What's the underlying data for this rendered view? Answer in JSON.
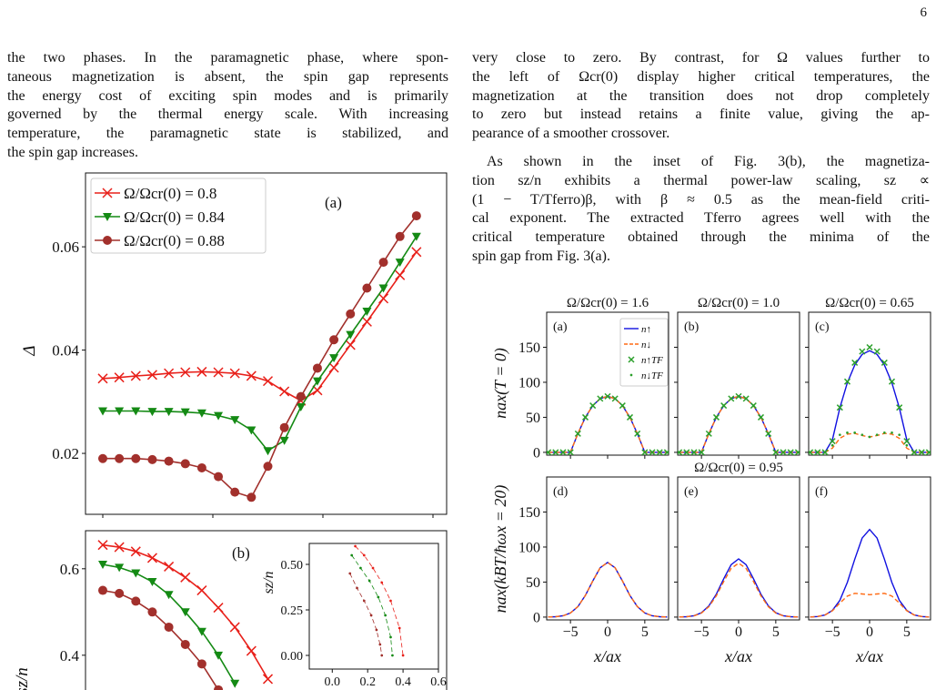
{
  "page_number": "6",
  "left_text": {
    "lines": [
      "the two phases. In the paramagnetic phase, where spon-",
      "taneous magnetization is absent, the spin gap represents",
      "the energy cost of exciting spin modes and is primarily",
      "governed by the thermal energy scale. With increasing",
      "temperature, the paramagnetic state is stabilized, and",
      "the spin gap increases."
    ]
  },
  "right_text": {
    "paragraphs": [
      [
        "very close to zero. By contrast, for Ω values further to",
        "the left of Ωcr(0) display higher critical temperatures, the",
        "magnetization at the transition does not drop completely",
        "to zero but instead retains a finite value, giving the ap-",
        "pearance of a smoother crossover."
      ],
      [
        "As shown in the inset of Fig. 3(b), the magnetiza-",
        "tion sz/n exhibits a thermal power-law scaling, sz ∝",
        "(1 − T/Tferro)β, with β ≈ 0.5 as the mean-field criti-",
        "cal exponent. The extracted Tferro agrees well with the",
        "critical temperature obtained through the minima of the",
        "spin gap from Fig. 3(a)."
      ]
    ]
  },
  "figure_left": {
    "panels": [
      {
        "type": "line",
        "label": "(a)",
        "ylabel": "Δ",
        "x": [
          0,
          0.15,
          0.3,
          0.45,
          0.6,
          0.75,
          0.9,
          1.05,
          1.2,
          1.35,
          1.5,
          1.65,
          1.8,
          1.95,
          2.1,
          2.25,
          2.4,
          2.55,
          2.7,
          2.85
        ],
        "xlim": [
          -0.157,
          3.124
        ],
        "xticks": [
          0,
          1,
          2,
          3
        ],
        "ylim": [
          0.0082,
          0.0743
        ],
        "yticks": [
          0.02,
          0.04,
          0.06
        ],
        "series": [
          {
            "name": "Ω/Ωcr(0) = 0.8",
            "color": "#e8201a",
            "marker": "x",
            "values": [
              0.0345,
              0.0347,
              0.035,
              0.0352,
              0.0355,
              0.0357,
              0.0358,
              0.0357,
              0.0355,
              0.035,
              0.034,
              0.032,
              0.0302,
              0.0322,
              0.0366,
              0.041,
              0.0455,
              0.05,
              0.0545,
              0.059
            ]
          },
          {
            "name": "Ω/Ωcr(0) = 0.84",
            "color": "#148a14",
            "marker": "v",
            "values": [
              0.0282,
              0.0282,
              0.0282,
              0.0281,
              0.0281,
              0.028,
              0.0278,
              0.0273,
              0.0265,
              0.0245,
              0.0205,
              0.0225,
              0.029,
              0.034,
              0.0385,
              0.043,
              0.0475,
              0.052,
              0.057,
              0.062
            ]
          },
          {
            "name": "Ω/Ωcr(0) = 0.88",
            "color": "#a2302c",
            "marker": "o",
            "values": [
              0.019,
              0.019,
              0.019,
              0.0188,
              0.0185,
              0.018,
              0.0172,
              0.0155,
              0.0125,
              0.0115,
              0.0175,
              0.025,
              0.031,
              0.0365,
              0.042,
              0.047,
              0.052,
              0.057,
              0.062,
              0.066
            ]
          }
        ]
      },
      {
        "type": "line",
        "label": "(b)",
        "ylabel": "sz/n",
        "x": [
          0,
          0.15,
          0.3,
          0.45,
          0.6,
          0.75,
          0.9,
          1.05,
          1.2,
          1.35,
          1.5
        ],
        "xlim": [
          -0.157,
          3.124
        ],
        "xticks": [
          0,
          1,
          2,
          3
        ],
        "ylim": [
          0.267,
          0.688
        ],
        "yticks": [
          0.4,
          0.6
        ],
        "series": [
          {
            "color": "#e8201a",
            "marker": "x",
            "values": [
              0.655,
              0.65,
              0.64,
              0.625,
              0.605,
              0.58,
              0.55,
              0.51,
              0.465,
              0.41,
              0.345
            ]
          },
          {
            "color": "#148a14",
            "marker": "v",
            "values": [
              0.61,
              0.603,
              0.59,
              0.57,
              0.54,
              0.5,
              0.455,
              0.4,
              0.335,
              null,
              null
            ]
          },
          {
            "color": "#a2302c",
            "marker": "o",
            "values": [
              0.55,
              0.543,
              0.525,
              0.5,
              0.465,
              0.425,
              0.38,
              0.32,
              null,
              null,
              null
            ]
          }
        ],
        "inset": {
          "ylabel": "sz/n",
          "xlim": [
            -0.13,
            0.6
          ],
          "ylim": [
            -0.075,
            0.615
          ],
          "xticks": [
            {
              "value": 0,
              "label": "0.0"
            },
            0.2,
            0.4,
            0.6
          ],
          "yticks": [
            {
              "value": 0,
              "label": "0.00"
            },
            0.25,
            {
              "value": 0.5,
              "label": "0.50"
            }
          ],
          "series": [
            {
              "color": "#e8201a",
              "x": [
                0.13,
                0.18,
                0.23,
                0.28,
                0.33,
                0.38,
                0.4
              ],
              "values": [
                0.6,
                0.55,
                0.48,
                0.4,
                0.3,
                0.15,
                0
              ]
            },
            {
              "color": "#148a14",
              "x": [
                0.11,
                0.16,
                0.21,
                0.26,
                0.3,
                0.33,
                0.34
              ],
              "values": [
                0.55,
                0.48,
                0.41,
                0.32,
                0.22,
                0.1,
                0
              ]
            },
            {
              "color": "#a2302c",
              "x": [
                0.1,
                0.14,
                0.18,
                0.22,
                0.25,
                0.27,
                0.28
              ],
              "values": [
                0.45,
                0.37,
                0.3,
                0.22,
                0.14,
                0.06,
                0
              ]
            }
          ]
        }
      }
    ]
  },
  "figure_right": {
    "type": "line",
    "x": [
      -8,
      -7,
      -6,
      -5,
      -4,
      -3,
      -2,
      -1,
      0,
      1,
      2,
      3,
      4,
      5,
      6,
      7,
      8
    ],
    "xlim": [
      -8.2,
      8.2
    ],
    "xticks": [
      {
        "value": -5,
        "label": "−5"
      },
      0,
      5
    ],
    "ylim": [
      -4,
      200
    ],
    "yticks": [
      0,
      50,
      100,
      150
    ],
    "xlabel": "x/ax",
    "ylabels": [
      "nax(T = 0)",
      "nax(kBT/ħωx = 20)"
    ],
    "legend": [
      {
        "name": "n↑",
        "color": "#1010e0",
        "style": "solid"
      },
      {
        "name": "n↓",
        "color": "#ff6a13",
        "style": "dashed"
      },
      {
        "name": "n↑TF",
        "color": "#2ca02c",
        "style": "x"
      },
      {
        "name": "n↓TF",
        "color": "#2ca02c",
        "style": "dot"
      }
    ],
    "panels": [
      {
        "label": "(a)",
        "title": "Ω/Ωcr(0) = 1.6",
        "series": [
          [
            0,
            0,
            0,
            0,
            26.7,
            50,
            66.7,
            76.7,
            80,
            76.7,
            66.7,
            50,
            26.7,
            0,
            0,
            0,
            0
          ],
          [
            0,
            0,
            0,
            0,
            26.7,
            50,
            66.7,
            76.7,
            80,
            76.7,
            66.7,
            50,
            26.7,
            0,
            0,
            0,
            0
          ],
          [
            0,
            0,
            0,
            0,
            26.7,
            50,
            66.7,
            76.7,
            80,
            76.7,
            66.7,
            50,
            26.7,
            0,
            0,
            0,
            0
          ],
          [
            0,
            0,
            0,
            0,
            26.7,
            50,
            66.7,
            76.7,
            80,
            76.7,
            66.7,
            50,
            26.7,
            0,
            0,
            0,
            0
          ]
        ]
      },
      {
        "label": "(b)",
        "title": "Ω/Ωcr(0) = 1.0",
        "series": [
          [
            0,
            0,
            0,
            0,
            26.7,
            50,
            66.7,
            76.7,
            80,
            76.7,
            66.7,
            50,
            26.7,
            0,
            0,
            0,
            0
          ],
          [
            0,
            0,
            0,
            0,
            26.7,
            50,
            66.7,
            76.7,
            80,
            76.7,
            66.7,
            50,
            26.7,
            0,
            0,
            0,
            0
          ],
          [
            0,
            0,
            0,
            0,
            26.7,
            50,
            66.7,
            76.7,
            80,
            76.7,
            66.7,
            50,
            26.7,
            0,
            0,
            0,
            0
          ],
          [
            0,
            0,
            0,
            0,
            26.7,
            50,
            66.7,
            76.7,
            80,
            76.7,
            66.7,
            50,
            26.7,
            0,
            0,
            0,
            0
          ]
        ]
      },
      {
        "label": "(c)",
        "title": "Ω/Ωcr(0) = 0.65",
        "series": [
          [
            0,
            0,
            0,
            17.8,
            63.5,
            99.2,
            124.6,
            139.9,
            145,
            139.9,
            124.6,
            99.2,
            63.5,
            17.8,
            0,
            0,
            0
          ],
          [
            0,
            0,
            0,
            6,
            20,
            26,
            27,
            24,
            22,
            24,
            27,
            26,
            20,
            6,
            0,
            0,
            0
          ],
          [
            0,
            0,
            0,
            16,
            64,
            101,
            128,
            144,
            150,
            144,
            128,
            101,
            64,
            16,
            0,
            0,
            0
          ],
          [
            0,
            0,
            0,
            10,
            25,
            28,
            28,
            25,
            22,
            25,
            28,
            28,
            25,
            10,
            0,
            0,
            0
          ]
        ]
      },
      {
        "label": "(d)",
        "series": [
          [
            0.1,
            0.5,
            1.9,
            5.9,
            15,
            30.8,
            51.6,
            70.4,
            78,
            70.4,
            51.6,
            30.8,
            15,
            5.9,
            1.9,
            0.5,
            0.1
          ],
          [
            0.1,
            0.5,
            1.9,
            5.9,
            15,
            30.8,
            51.6,
            70.4,
            78,
            70.4,
            51.6,
            30.8,
            15,
            5.9,
            1.9,
            0.5,
            0.1
          ]
        ]
      },
      {
        "label": "(e)",
        "title": "Ω/Ωcr(0) = 0.95",
        "series": [
          [
            0.1,
            0.5,
            2,
            6.3,
            16,
            32.8,
            54.9,
            74.9,
            83,
            74.9,
            54.9,
            32.8,
            16,
            6.3,
            2,
            0.5,
            0.1
          ],
          [
            0.1,
            0.5,
            1.9,
            5.8,
            14.8,
            30.4,
            51,
            69.5,
            77,
            69.5,
            51,
            30.4,
            14.8,
            5.8,
            1.9,
            0.5,
            0.1
          ]
        ]
      },
      {
        "label": "(f)",
        "series": [
          [
            0.2,
            0.8,
            3,
            9.5,
            24,
            49.4,
            82.7,
            112.8,
            125,
            112.8,
            82.7,
            49.4,
            24,
            9.5,
            3,
            0.8,
            0.2
          ],
          [
            0,
            1,
            3,
            9,
            20,
            30,
            34,
            33,
            32,
            33,
            34,
            30,
            20,
            9,
            3,
            1,
            0
          ]
        ]
      }
    ]
  }
}
